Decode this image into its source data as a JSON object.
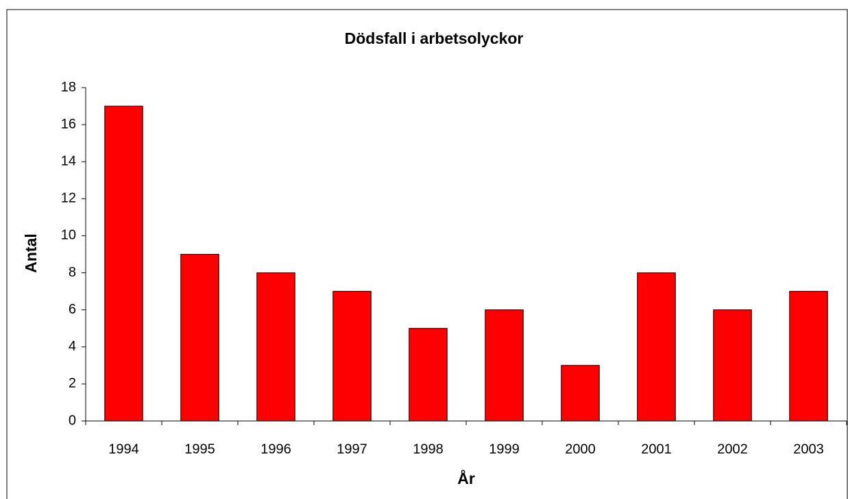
{
  "chart_data": {
    "type": "bar",
    "title": "Dödsfall i arbetsolyckor",
    "x_label": "År",
    "y_label": "Antal",
    "categories": [
      "1994",
      "1995",
      "1996",
      "1997",
      "1998",
      "1999",
      "2000",
      "2001",
      "2002",
      "2003"
    ],
    "values": [
      17,
      9,
      8,
      7,
      5,
      6,
      3,
      8,
      6,
      7
    ],
    "color": "#ff0000",
    "ylim": [
      0,
      18
    ],
    "yticks": [
      0,
      2,
      4,
      6,
      8,
      10,
      12,
      14,
      16,
      18
    ],
    "grid": false
  }
}
